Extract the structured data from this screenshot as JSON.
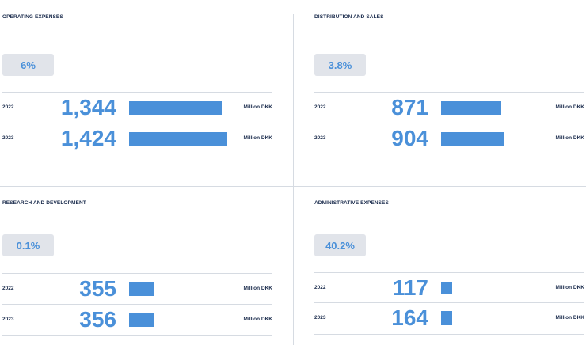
{
  "panels": [
    {
      "title": "OPERATING EXPENSES",
      "change": "6%",
      "rows": [
        {
          "year": "2022",
          "value": "1,344",
          "amount": 1344,
          "unit": "Million DKK"
        },
        {
          "year": "2023",
          "value": "1,424",
          "amount": 1424,
          "unit": "Million DKK"
        }
      ]
    },
    {
      "title": "DISTRIBUTION AND SALES",
      "change": "3.8%",
      "rows": [
        {
          "year": "2022",
          "value": "871",
          "amount": 871,
          "unit": "Million DKK"
        },
        {
          "year": "2023",
          "value": "904",
          "amount": 904,
          "unit": "Million DKK"
        }
      ]
    },
    {
      "title": "RESEARCH AND DEVELOPMENT",
      "change": "0.1%",
      "rows": [
        {
          "year": "2022",
          "value": "355",
          "amount": 355,
          "unit": "Million DKK"
        },
        {
          "year": "2023",
          "value": "356",
          "amount": 356,
          "unit": "Million DKK"
        }
      ]
    },
    {
      "title": "ADMINISTRATIVE EXPENSES",
      "change": "40.2%",
      "rows": [
        {
          "year": "2022",
          "value": "117",
          "amount": 117,
          "unit": "Million DKK"
        },
        {
          "year": "2023",
          "value": "164",
          "amount": 164,
          "unit": "Million DKK"
        }
      ]
    }
  ],
  "colors": {
    "accent": "#4a90d9",
    "heading": "#1a2b4c",
    "badge_bg": "#e1e4ea",
    "divider": "#d6dbe2"
  }
}
